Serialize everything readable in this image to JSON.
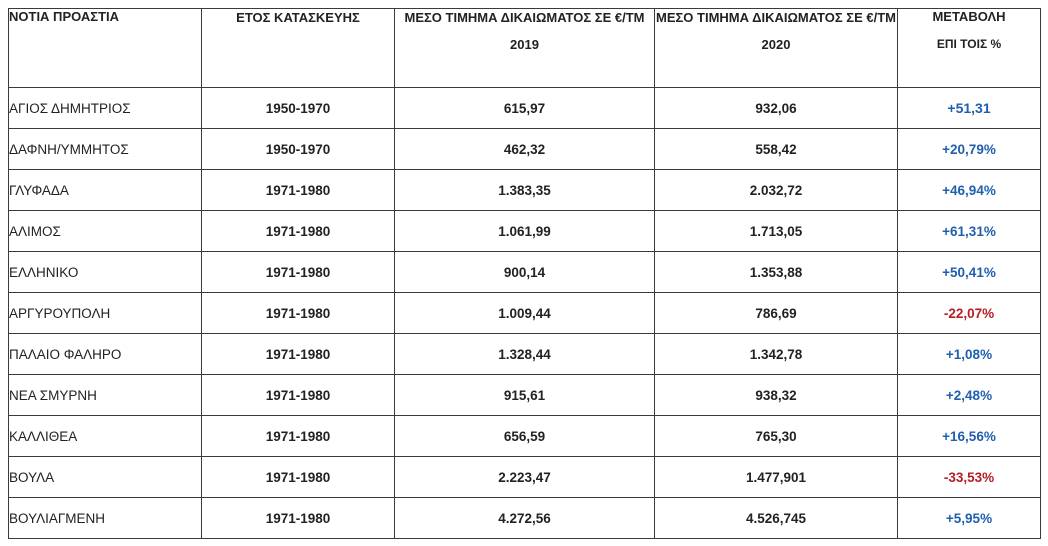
{
  "headers": {
    "area": "ΝΟΤΙΑ ΠΡΟΑΣΤΙΑ",
    "year_built": "ΕΤΟΣ ΚΑΤΑΣΚΕΥΗΣ",
    "price_2019": "ΜΕΣΟ ΤΙΜΗΜΑ ΔΙΚΑΙΩΜΑΤΟΣ ΣΕ €/ΤΜ",
    "year_2019": "2019",
    "price_2020": "ΜΕΣΟ ΤΙΜΗΜΑ ΔΙΚΑΙΩΜΑΤΟΣ ΣΕ €/ΤΜ",
    "year_2020": "2020",
    "change": "ΜΕΤΑΒΟΛΗ",
    "change_sub": "ΕΠΙ ΤΟΙΣ %"
  },
  "colors": {
    "positive": "#1f5fae",
    "negative": "#b81c23"
  },
  "rows": [
    {
      "area": "ΑΓΙΟΣ ΔΗΜΗΤΡΙΟΣ",
      "year": "1950-1970",
      "v2019": "615,97",
      "v2020": "932,06",
      "change": "+51,31",
      "trend": "up"
    },
    {
      "area": "ΔΑΦΝΗ/ΥΜΜΗΤΟΣ",
      "year": "1950-1970",
      "v2019": "462,32",
      "v2020": "558,42",
      "change": "+20,79%",
      "trend": "up"
    },
    {
      "area": "ΓΛΥΦΑΔΑ",
      "year": "1971-1980",
      "v2019": "1.383,35",
      "v2020": "2.032,72",
      "change": "+46,94%",
      "trend": "up"
    },
    {
      "area": "ΑΛΙΜΟΣ",
      "year": "1971-1980",
      "v2019": "1.061,99",
      "v2020": "1.713,05",
      "change": "+61,31%",
      "trend": "up"
    },
    {
      "area": "ΕΛΛΗΝΙΚΟ",
      "year": "1971-1980",
      "v2019": "900,14",
      "v2020": "1.353,88",
      "change": "+50,41%",
      "trend": "up"
    },
    {
      "area": "ΑΡΓΥΡΟΥΠΟΛΗ",
      "year": "1971-1980",
      "v2019": "1.009,44",
      "v2020": "786,69",
      "change": "-22,07%",
      "trend": "down"
    },
    {
      "area": "ΠΑΛΑΙΟ ΦΑΛΗΡΟ",
      "year": "1971-1980",
      "v2019": "1.328,44",
      "v2020": "1.342,78",
      "change": "+1,08%",
      "trend": "up"
    },
    {
      "area": "ΝΕΑ ΣΜΥΡΝΗ",
      "year": "1971-1980",
      "v2019": "915,61",
      "v2020": "938,32",
      "change": "+2,48%",
      "trend": "up"
    },
    {
      "area": "ΚΑΛΛΙΘΕΑ",
      "year": "1971-1980",
      "v2019": "656,59",
      "v2020": "765,30",
      "change": "+16,56%",
      "trend": "up"
    },
    {
      "area": "ΒΟΥΛΑ",
      "year": "1971-1980",
      "v2019": "2.223,47",
      "v2020": "1.477,901",
      "change": "-33,53%",
      "trend": "down"
    },
    {
      "area": "ΒΟΥΛΙΑΓΜΕΝΗ",
      "year": "1971-1980",
      "v2019": "4.272,56",
      "v2020": "4.526,745",
      "change": "+5,95%",
      "trend": "up"
    }
  ]
}
